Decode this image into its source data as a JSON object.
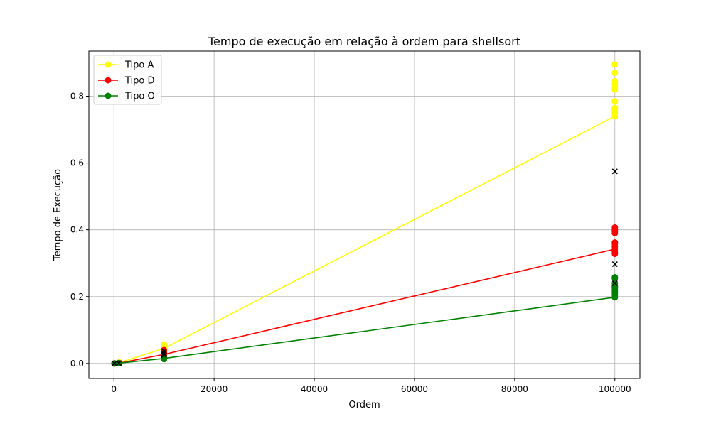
{
  "chart_data": {
    "type": "line",
    "title": "Tempo de execução em relação à ordem para shellsort",
    "xlabel": "Ordem",
    "ylabel": "Tempo de Execução",
    "xlim": [
      -5000,
      105000
    ],
    "ylim": [
      -0.045,
      0.935
    ],
    "xticks": [
      0,
      20000,
      40000,
      60000,
      80000,
      100000
    ],
    "yticks": [
      0.0,
      0.2,
      0.4,
      0.6,
      0.8
    ],
    "xtick_labels": [
      "0",
      "20000",
      "40000",
      "60000",
      "80000",
      "100000"
    ],
    "ytick_labels": [
      "0.0",
      "0.2",
      "0.4",
      "0.6",
      "0.8"
    ],
    "grid": true,
    "legend_position": "top-left",
    "series": [
      {
        "name": "Tipo A",
        "color": "#ffff00",
        "line": {
          "x": [
            100,
            1000,
            10000,
            100000
          ],
          "y": [
            0.0001,
            0.002,
            0.045,
            0.74
          ]
        },
        "points": [
          [
            100,
            0.0
          ],
          [
            100,
            0.0002
          ],
          [
            1000,
            0.001
          ],
          [
            1000,
            0.003
          ],
          [
            10000,
            0.038
          ],
          [
            10000,
            0.045
          ],
          [
            10000,
            0.05
          ],
          [
            10000,
            0.057
          ],
          [
            100000,
            0.74
          ],
          [
            100000,
            0.75
          ],
          [
            100000,
            0.76
          ],
          [
            100000,
            0.765
          ],
          [
            100000,
            0.785
          ],
          [
            100000,
            0.82
          ],
          [
            100000,
            0.825
          ],
          [
            100000,
            0.835
          ],
          [
            100000,
            0.845
          ],
          [
            100000,
            0.87
          ],
          [
            100000,
            0.895
          ]
        ]
      },
      {
        "name": "Tipo D",
        "color": "#ff0000",
        "line": {
          "x": [
            100,
            1000,
            10000,
            100000
          ],
          "y": [
            0.0001,
            0.001,
            0.027,
            0.342
          ]
        },
        "points": [
          [
            100,
            0.0
          ],
          [
            100,
            0.0001
          ],
          [
            1000,
            0.0008
          ],
          [
            1000,
            0.0015
          ],
          [
            10000,
            0.022
          ],
          [
            10000,
            0.027
          ],
          [
            10000,
            0.032
          ],
          [
            10000,
            0.04
          ],
          [
            100000,
            0.328
          ],
          [
            100000,
            0.335
          ],
          [
            100000,
            0.342
          ],
          [
            100000,
            0.35
          ],
          [
            100000,
            0.358
          ],
          [
            100000,
            0.362
          ],
          [
            100000,
            0.39
          ],
          [
            100000,
            0.395
          ],
          [
            100000,
            0.4
          ],
          [
            100000,
            0.407
          ]
        ]
      },
      {
        "name": "Tipo O",
        "color": "#008000",
        "line": {
          "x": [
            100,
            1000,
            10000,
            100000
          ],
          "y": [
            0.0,
            0.0008,
            0.015,
            0.198
          ]
        },
        "points": [
          [
            100,
            0.0
          ],
          [
            100,
            0.0001
          ],
          [
            1000,
            0.0005
          ],
          [
            1000,
            0.001
          ],
          [
            10000,
            0.013
          ],
          [
            10000,
            0.015
          ],
          [
            10000,
            0.018
          ],
          [
            100000,
            0.198
          ],
          [
            100000,
            0.205
          ],
          [
            100000,
            0.21
          ],
          [
            100000,
            0.215
          ],
          [
            100000,
            0.222
          ],
          [
            100000,
            0.228
          ],
          [
            100000,
            0.232
          ],
          [
            100000,
            0.24
          ],
          [
            100000,
            0.255
          ],
          [
            100000,
            0.258
          ]
        ]
      }
    ],
    "x_markers": {
      "color": "#000000",
      "points": [
        [
          100,
          0.0
        ],
        [
          1000,
          0.001
        ],
        [
          10000,
          0.025
        ],
        [
          10000,
          0.03
        ],
        [
          10000,
          0.037
        ],
        [
          100000,
          0.24
        ],
        [
          100000,
          0.297
        ],
        [
          100000,
          0.575
        ]
      ]
    }
  }
}
